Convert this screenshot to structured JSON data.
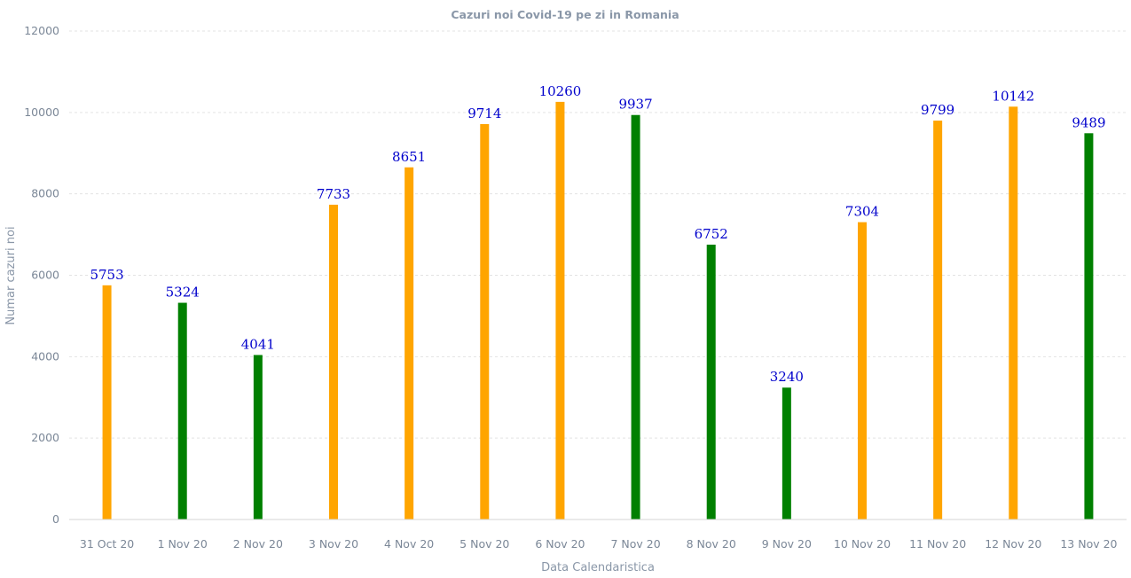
{
  "chart_data": {
    "type": "bar",
    "title": "Cazuri noi Covid-19 pe zi in Romania",
    "xlabel": "Data Calendaristica",
    "ylabel": "Numar cazuri noi",
    "ylim": [
      0,
      12000
    ],
    "yticks": [
      0,
      2000,
      4000,
      6000,
      8000,
      10000,
      12000
    ],
    "grid": true,
    "categories": [
      "31 Oct 20",
      "1 Nov 20",
      "2 Nov 20",
      "3 Nov 20",
      "4 Nov 20",
      "5 Nov 20",
      "6 Nov 20",
      "7 Nov 20",
      "8 Nov 20",
      "9 Nov 20",
      "10 Nov 20",
      "11 Nov 20",
      "12 Nov 20",
      "13 Nov 20"
    ],
    "values": [
      5753,
      5324,
      4041,
      7733,
      8651,
      9714,
      10260,
      9937,
      6752,
      3240,
      7304,
      9799,
      10142,
      9489
    ],
    "bar_colors": [
      "#ffa500",
      "#008000",
      "#008000",
      "#ffa500",
      "#ffa500",
      "#ffa500",
      "#ffa500",
      "#008000",
      "#008000",
      "#008000",
      "#ffa500",
      "#ffa500",
      "#ffa500",
      "#008000"
    ],
    "data_label_color": "#0000cc"
  }
}
